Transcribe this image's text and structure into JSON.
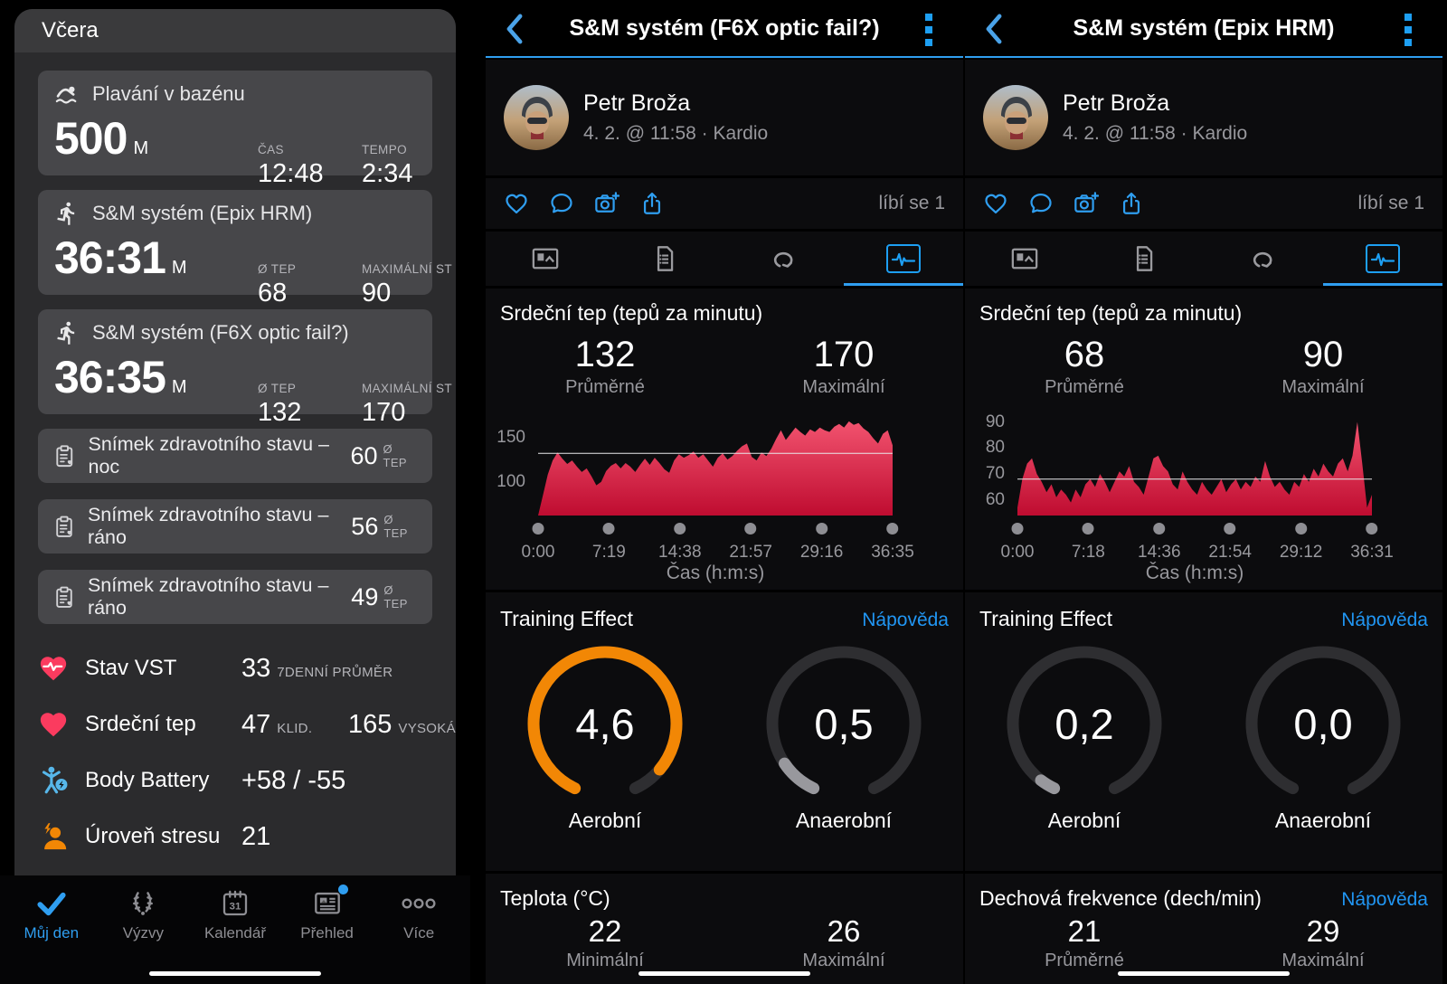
{
  "colors": {
    "accent_blue": "#2f9ef0",
    "link_blue": "#2196f3",
    "gauge_orange": "#f28705",
    "gauge_gray": "#98989d",
    "chart_red_top": "#f2536f",
    "chart_red_bottom": "#bf0c30",
    "pink_heart": "#fb3b5f",
    "body_battery_blue": "#57b7ea",
    "stress_orange": "#f28705"
  },
  "left": {
    "header": "Včera",
    "activities": [
      {
        "icon": "swim-icon",
        "title": "Plavání v bazénu",
        "value": "500",
        "unit": "M",
        "cols": [
          {
            "label": "ČAS",
            "value": "12:48"
          },
          {
            "label": "TEMPO",
            "value": "2:34"
          }
        ]
      },
      {
        "icon": "run-icon",
        "title": "S&M systém (Epix HRM)",
        "value": "36:31",
        "unit": "M",
        "cols": [
          {
            "label": "Ø TEP",
            "value": "68"
          },
          {
            "label": "MAXIMÁLNÍ ST",
            "value": "90"
          }
        ]
      },
      {
        "icon": "run-icon",
        "title": "S&M systém (F6X optic fail?)",
        "value": "36:35",
        "unit": "M",
        "cols": [
          {
            "label": "Ø TEP",
            "value": "132"
          },
          {
            "label": "MAXIMÁLNÍ ST",
            "value": "170"
          }
        ]
      }
    ],
    "snapshots": [
      {
        "title": "Snímek zdravotního stavu – noc",
        "value": "60",
        "unit": "Ø TEP"
      },
      {
        "title": "Snímek zdravotního stavu – ráno",
        "value": "56",
        "unit": "Ø TEP"
      },
      {
        "title": "Snímek zdravotního stavu – ráno",
        "value": "49",
        "unit": "Ø TEP"
      }
    ],
    "stats": [
      {
        "label": "Stav VST",
        "value": "33",
        "caption": "7DENNÍ PRŮMĚR"
      },
      {
        "label": "Srdeční tep",
        "value": "47",
        "caption": "KLID.",
        "value2": "165",
        "caption2": "VYSOKÁ"
      },
      {
        "label": "Body Battery",
        "value": "+58 / -55"
      },
      {
        "label": "Úroveň stresu",
        "value": "21"
      }
    ],
    "nav": [
      {
        "label": "Můj den"
      },
      {
        "label": "Výzvy"
      },
      {
        "label": "Kalendář"
      },
      {
        "label": "Přehled"
      },
      {
        "label": "Více"
      }
    ]
  },
  "detail1": {
    "title": "S&M systém (F6X optic fail?)",
    "user": "Petr Broža",
    "meta": "4. 2. @ 11:58 · Kardio",
    "likes": "líbí se 1",
    "hr": {
      "title": "Srdeční tep (tepů za minutu)",
      "avg": "132",
      "avg_caption": "Průměrné",
      "max": "170",
      "max_caption": "Maximální",
      "xlabel": "Čas (h:m:s)",
      "ymin": 62,
      "ymax": 176,
      "avg_line": 132,
      "yticks": [
        150,
        100
      ],
      "xticks": [
        "0:00",
        "7:19",
        "14:38",
        "21:57",
        "29:16",
        "36:35"
      ],
      "color_top": "#f2536f",
      "color_bottom": "#bf0c30",
      "series": [
        62,
        85,
        108,
        124,
        133,
        126,
        120,
        124,
        117,
        111,
        115,
        106,
        96,
        100,
        112,
        118,
        121,
        115,
        121,
        117,
        111,
        119,
        126,
        119,
        127,
        121,
        114,
        110,
        124,
        131,
        127,
        130,
        134,
        127,
        131,
        124,
        117,
        127,
        132,
        125,
        129,
        135,
        140,
        143,
        128,
        124,
        133,
        129,
        137,
        148,
        158,
        147,
        154,
        161,
        156,
        152,
        159,
        156,
        161,
        158,
        156,
        162,
        165,
        161,
        168,
        164,
        166,
        160,
        156,
        149,
        143,
        154,
        158,
        141
      ]
    },
    "training_effect": {
      "title": "Training Effect",
      "help": "Nápověda",
      "gauges": [
        {
          "value": "4,6",
          "label": "Aerobní",
          "fraction": 0.92,
          "color": "#f28705"
        },
        {
          "value": "0,5",
          "label": "Anaerobní",
          "fraction": 0.1,
          "color": "#98989d"
        }
      ]
    },
    "bottom": {
      "title": "Teplota (°C)",
      "v1": "22",
      "c1": "Minimální",
      "v2": "26",
      "c2": "Maximální"
    }
  },
  "detail2": {
    "title": "S&M systém (Epix HRM)",
    "user": "Petr Broža",
    "meta": "4. 2. @ 11:58 · Kardio",
    "likes": "líbí se 1",
    "hr": {
      "title": "Srdeční tep (tepů za minutu)",
      "avg": "68",
      "avg_caption": "Průměrné",
      "max": "90",
      "max_caption": "Maximální",
      "xlabel": "Čas (h:m:s)",
      "ymin": 54,
      "ymax": 93,
      "avg_line": 68,
      "yticks": [
        90,
        80,
        70,
        60
      ],
      "xticks": [
        "0:00",
        "7:18",
        "14:36",
        "21:54",
        "29:12",
        "36:31"
      ],
      "color_top": "#f2536f",
      "color_bottom": "#bf0c30",
      "series": [
        57,
        68,
        74,
        76,
        70,
        67,
        63,
        66,
        61,
        64,
        62,
        59,
        64,
        61,
        66,
        68,
        65,
        70,
        67,
        63,
        67,
        71,
        69,
        73,
        67,
        65,
        62,
        69,
        76,
        77,
        73,
        71,
        66,
        64,
        71,
        67,
        64,
        62,
        67,
        64,
        62,
        65,
        68,
        63,
        66,
        68,
        64,
        67,
        65,
        69,
        67,
        75,
        69,
        65,
        67,
        64,
        62,
        67,
        65,
        70,
        67,
        72,
        69,
        74,
        71,
        69,
        74,
        76,
        71,
        77,
        90,
        74,
        57,
        62
      ]
    },
    "training_effect": {
      "title": "Training Effect",
      "help": "Nápověda",
      "gauges": [
        {
          "value": "0,2",
          "label": "Aerobní",
          "fraction": 0.04,
          "color": "#98989d"
        },
        {
          "value": "0,0",
          "label": "Anaerobní",
          "fraction": 0,
          "color": "#98989d"
        }
      ]
    },
    "bottom": {
      "title": "Dechová frekvence (dech/min)",
      "help": "Nápověda",
      "v1": "21",
      "c1": "Průměrné",
      "v2": "29",
      "c2": "Maximální"
    }
  }
}
